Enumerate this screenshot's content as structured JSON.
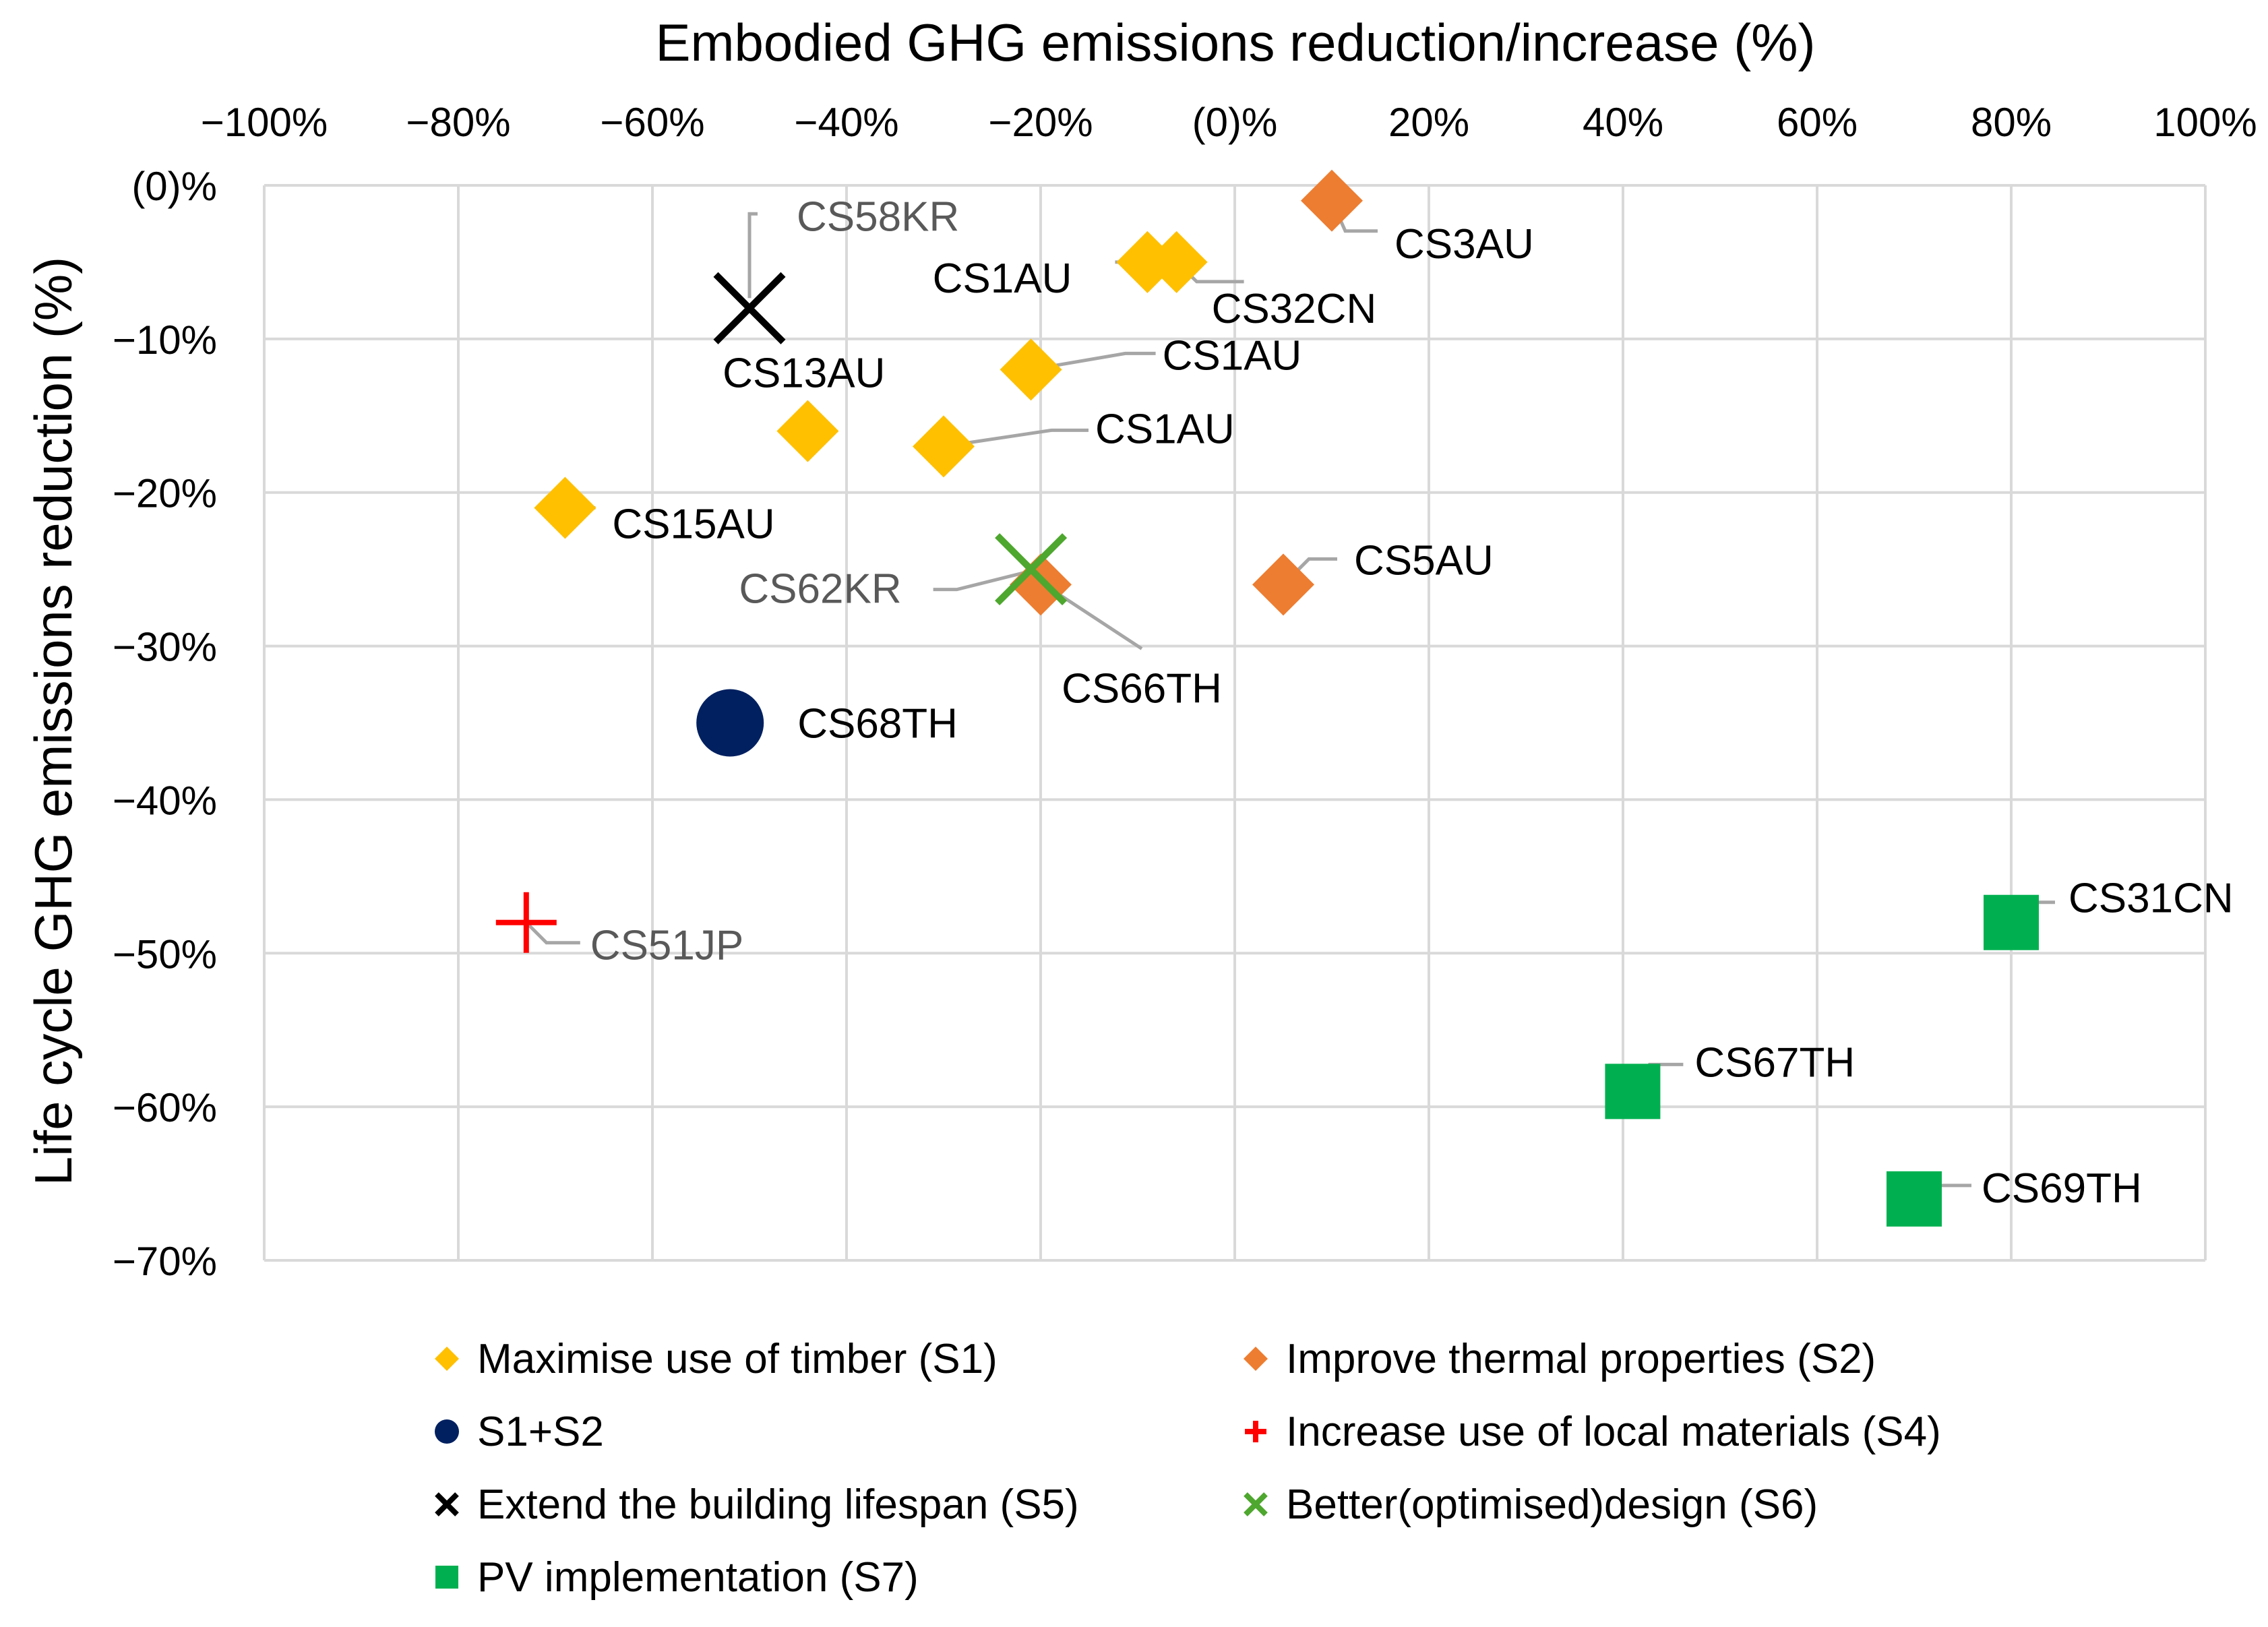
{
  "chart_data": {
    "type": "scatter",
    "title": "",
    "xlabel": "Embodied GHG emissions reduction/increase (%)",
    "ylabel": "Life cycle GHG emissions reduction (%)",
    "xlim": [
      -100,
      100
    ],
    "ylim": [
      -70,
      0
    ],
    "grid": true,
    "x_tick_labels": [
      "−100%",
      "−80%",
      "−60%",
      "−40%",
      "−20%",
      "(0)%",
      "20%",
      "40%",
      "60%",
      "80%",
      "100%"
    ],
    "y_tick_labels": [
      "(0)%",
      "−10%",
      "−20%",
      "−30%",
      "−40%",
      "−50%",
      "−60%",
      "−70%"
    ],
    "legend_position": "bottom",
    "series": [
      {
        "key": "s1",
        "name": "Maximise use of timber (S1)",
        "marker": "diamond",
        "color": "#FFC000",
        "points": [
          {
            "x": -9,
            "y": -5,
            "label": "CS1AU"
          },
          {
            "x": -6,
            "y": -5,
            "label": "CS32CN"
          },
          {
            "x": -21,
            "y": -12,
            "label": "CS1AU"
          },
          {
            "x": -44,
            "y": -16,
            "label": "CS13AU"
          },
          {
            "x": -30,
            "y": -17,
            "label": "CS1AU"
          },
          {
            "x": -69,
            "y": -21,
            "label": "CS15AU"
          }
        ]
      },
      {
        "key": "s2",
        "name": "Improve thermal properties (S2)",
        "marker": "diamond",
        "color": "#ED7D31",
        "points": [
          {
            "x": 10,
            "y": -1,
            "label": "CS3AU"
          },
          {
            "x": 5,
            "y": -26,
            "label": "CS5AU"
          },
          {
            "x": -20,
            "y": -26,
            "label": "CS66TH"
          }
        ]
      },
      {
        "key": "s12",
        "name": "S1+S2",
        "marker": "circle",
        "color": "#002060",
        "points": [
          {
            "x": -52,
            "y": -35,
            "label": "CS68TH"
          }
        ]
      },
      {
        "key": "s4",
        "name": "Increase use of local materials (S4)",
        "marker": "plus",
        "color": "#FF0000",
        "points": [
          {
            "x": -73,
            "y": -48,
            "label": "CS51JP"
          }
        ]
      },
      {
        "key": "s5",
        "name": "Extend the building lifespan (S5)",
        "marker": "x",
        "color": "#000000",
        "points": [
          {
            "x": -50,
            "y": -8,
            "label": "CS58KR"
          }
        ]
      },
      {
        "key": "s6",
        "name": "Better(optimised)design (S6)",
        "marker": "x",
        "color": "#4EA72E",
        "points": [
          {
            "x": -21,
            "y": -25,
            "label": "CS62KR"
          }
        ]
      },
      {
        "key": "s7",
        "name": "PV implementation (S7)",
        "marker": "square",
        "color": "#00B050",
        "points": [
          {
            "x": 80,
            "y": -48,
            "label": "CS31CN"
          },
          {
            "x": 41,
            "y": -59,
            "label": "CS67TH"
          },
          {
            "x": 70,
            "y": -66,
            "label": "CS69TH"
          }
        ]
      }
    ]
  }
}
